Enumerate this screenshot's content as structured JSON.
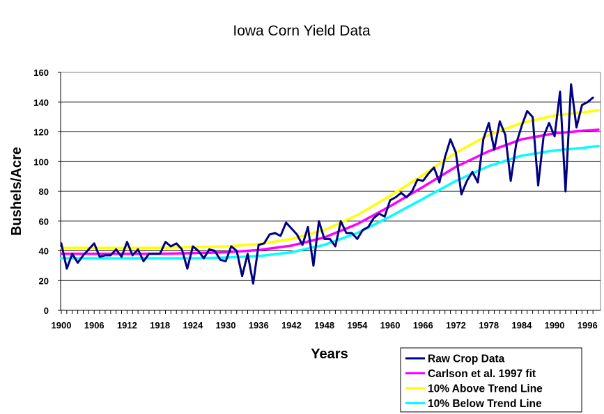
{
  "chart_data": {
    "type": "line",
    "title": "Iowa Corn Yield Data",
    "xlabel": "Years",
    "ylabel": "Bushels/Acre",
    "xlim": [
      1900,
      1998
    ],
    "ylim": [
      0,
      160
    ],
    "x_ticks": [
      1900,
      1906,
      1912,
      1918,
      1924,
      1930,
      1936,
      1942,
      1948,
      1954,
      1960,
      1966,
      1972,
      1978,
      1984,
      1990,
      1996
    ],
    "y_ticks": [
      0,
      20,
      40,
      60,
      80,
      100,
      120,
      140,
      160
    ],
    "grid": "horizontal",
    "legend_position": "bottom-right",
    "colors": {
      "raw": "#000080",
      "fit": "#ff00ff",
      "above": "#ffff00",
      "below": "#00ffff",
      "plot_frame": "#808080",
      "gridline": "#000000"
    },
    "series": [
      {
        "name": "Raw Crop Data",
        "color": "#000080",
        "x": [
          1900,
          1901,
          1902,
          1903,
          1904,
          1905,
          1906,
          1907,
          1908,
          1909,
          1910,
          1911,
          1912,
          1913,
          1914,
          1915,
          1916,
          1917,
          1918,
          1919,
          1920,
          1921,
          1922,
          1923,
          1924,
          1925,
          1926,
          1927,
          1928,
          1929,
          1930,
          1931,
          1932,
          1933,
          1934,
          1935,
          1936,
          1937,
          1938,
          1939,
          1940,
          1941,
          1942,
          1943,
          1944,
          1945,
          1946,
          1947,
          1948,
          1949,
          1950,
          1951,
          1952,
          1953,
          1954,
          1955,
          1956,
          1957,
          1958,
          1959,
          1960,
          1961,
          1962,
          1963,
          1964,
          1965,
          1966,
          1967,
          1968,
          1969,
          1970,
          1971,
          1972,
          1973,
          1974,
          1975,
          1976,
          1977,
          1978,
          1979,
          1980,
          1981,
          1982,
          1983,
          1984,
          1985,
          1986,
          1987,
          1988,
          1989,
          1990,
          1991,
          1992,
          1993,
          1994,
          1995,
          1996,
          1997
        ],
        "y": [
          45,
          28,
          38,
          32,
          37,
          41,
          45,
          36,
          37,
          37,
          41,
          36,
          46,
          37,
          41,
          33,
          38,
          38,
          38,
          46,
          43,
          45,
          41,
          28,
          43,
          40,
          35,
          41,
          40,
          34,
          33,
          43,
          40,
          23,
          38,
          18,
          44,
          45,
          51,
          52,
          50,
          59,
          55,
          51,
          44,
          56,
          30,
          60,
          48,
          48,
          43,
          60,
          52,
          52,
          48,
          54,
          56,
          62,
          65,
          63,
          74,
          76,
          79,
          76,
          80,
          88,
          87,
          92,
          96,
          86,
          103,
          115,
          106,
          78,
          87,
          93,
          86,
          115,
          126,
          108,
          127,
          118,
          87,
          112,
          124,
          134,
          130,
          84,
          117,
          126,
          117,
          147,
          80,
          152,
          123,
          138,
          140,
          143
        ]
      },
      {
        "name": "Carlson et al. 1997 fit",
        "color": "#ff00ff",
        "x": [
          1900,
          1906,
          1912,
          1918,
          1924,
          1930,
          1936,
          1942,
          1948,
          1954,
          1960,
          1966,
          1972,
          1978,
          1984,
          1990,
          1996,
          1998
        ],
        "y": [
          38,
          38,
          38,
          38,
          38.5,
          39,
          40.5,
          43.5,
          49,
          58,
          70,
          83,
          96.5,
          107,
          115,
          119,
          121,
          121.5
        ]
      },
      {
        "name": "10% Above Trend Line",
        "color": "#ffff00",
        "x": [
          1900,
          1906,
          1912,
          1918,
          1924,
          1930,
          1936,
          1942,
          1948,
          1954,
          1960,
          1966,
          1972,
          1978,
          1984,
          1990,
          1996,
          1998
        ],
        "y": [
          42,
          42,
          42,
          42,
          42.5,
          43,
          44.5,
          48,
          54,
          64,
          77,
          91,
          106,
          118,
          126,
          131,
          133.5,
          134.5
        ]
      },
      {
        "name": "10% Below Trend Line",
        "color": "#00ffff",
        "x": [
          1900,
          1906,
          1912,
          1918,
          1924,
          1930,
          1936,
          1942,
          1948,
          1954,
          1960,
          1966,
          1972,
          1978,
          1984,
          1990,
          1996,
          1998
        ],
        "y": [
          35,
          35,
          35,
          35,
          35,
          35.5,
          36.5,
          39,
          44,
          52,
          63,
          75,
          87,
          97,
          104,
          107.5,
          109.5,
          110.5
        ]
      }
    ]
  }
}
